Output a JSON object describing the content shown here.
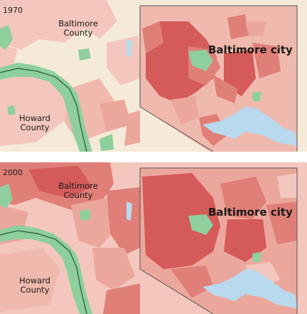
{
  "panels": [
    {
      "year": "1970",
      "labels": {
        "county_north": [
          "Baltimore",
          "County"
        ],
        "county_south": [
          "Howard",
          "County"
        ],
        "city": "Baltimore city"
      }
    },
    {
      "year": "2000",
      "labels": {
        "county_north": [
          "Baltimore",
          "County"
        ],
        "county_south": [
          "Howard",
          "County"
        ],
        "city": "Baltimore city"
      }
    }
  ],
  "colors": {
    "background_light": "#f5ead8",
    "tract_pale": "#f3c7be",
    "tract_light": "#eca79d",
    "tract_mid": "#e07f77",
    "tract_dark": "#d45b59",
    "park_green": "#8fcf9e",
    "water_blue": "#b8d9ee",
    "river_line": "#356c4c",
    "city_boundary": "#555555"
  }
}
